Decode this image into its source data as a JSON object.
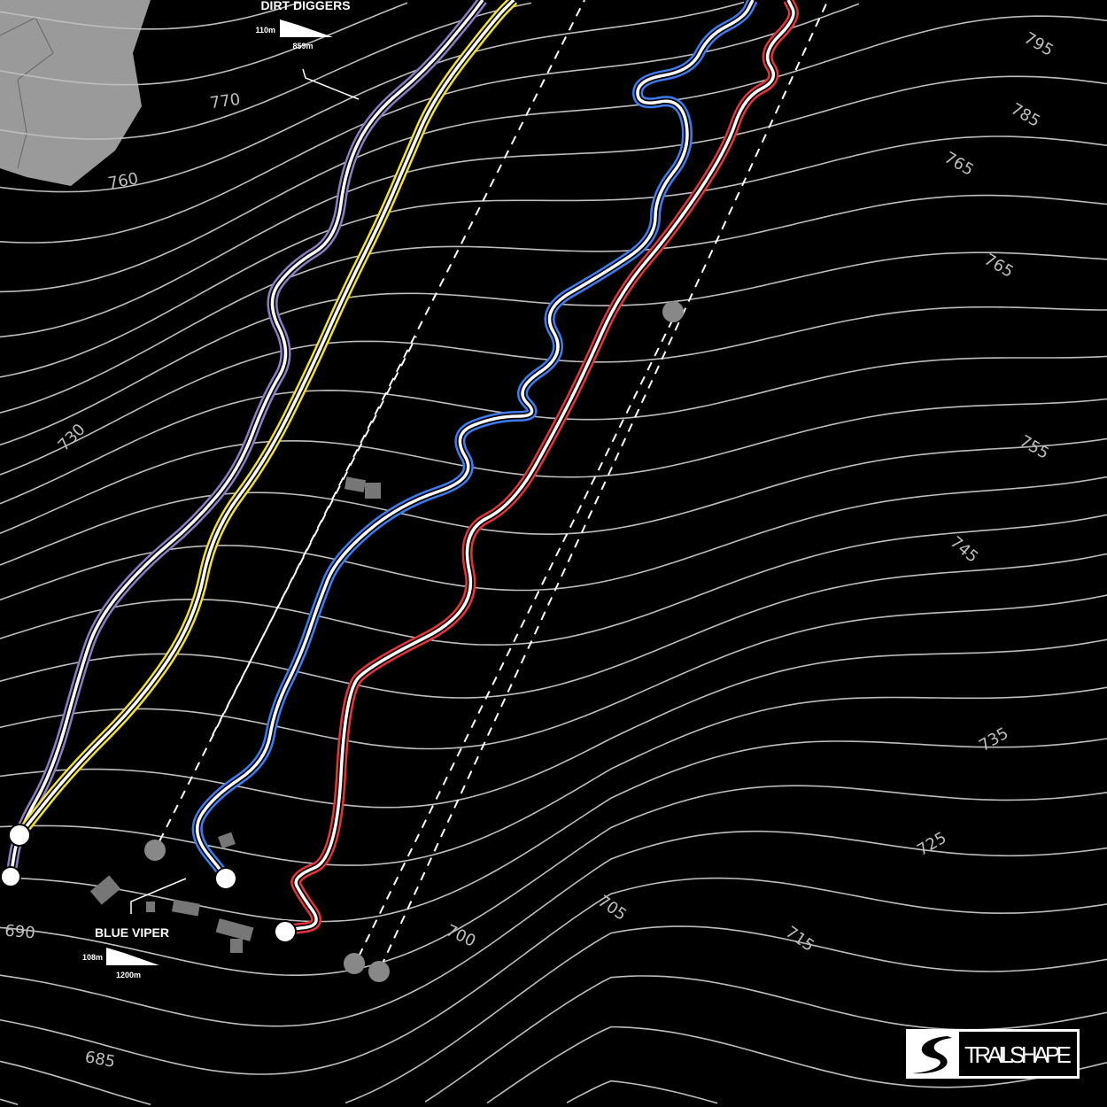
{
  "map": {
    "background": "#000000",
    "contour_color": "#bdbdbd",
    "contour_labels": [
      "795",
      "785",
      "765",
      "765",
      "755",
      "745",
      "735",
      "725",
      "715",
      "705",
      "700",
      "690",
      "685",
      "730",
      "760",
      "770"
    ]
  },
  "trails": [
    {
      "name": "DIRT DIGGERS",
      "color": "#8e7cc3",
      "drop": "110m",
      "length": "859m"
    },
    {
      "name": "",
      "color": "#f2e22a"
    },
    {
      "name": "BLUE VIPER",
      "color": "#3d7cf2",
      "drop": "108m",
      "length": "1200m"
    },
    {
      "name": "",
      "color": "#e8323c"
    }
  ],
  "logo": {
    "text": "TRAILSHAPE"
  }
}
